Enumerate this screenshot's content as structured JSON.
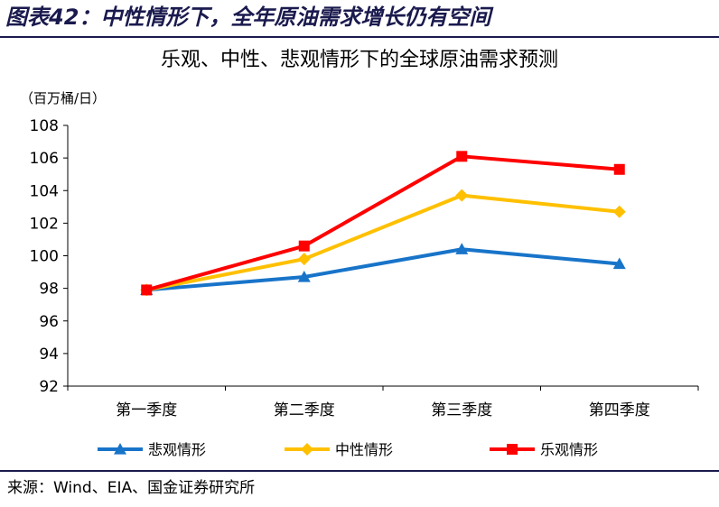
{
  "figure": {
    "title": "图表42：中性情形下，全年原油需求增长仍有空间",
    "source": "来源：Wind、EIA、国金证券研究所"
  },
  "chart_data": {
    "type": "line",
    "title": "乐观、中性、悲观情形下的全球原油需求预测",
    "unit_label": "（百万桶/日）",
    "categories": [
      "第一季度",
      "第二季度",
      "第三季度",
      "第四季度"
    ],
    "ylim": [
      92,
      108
    ],
    "yticks": [
      92,
      94,
      96,
      98,
      100,
      102,
      104,
      106,
      108
    ],
    "grid": false,
    "legend_position": "bottom",
    "series": [
      {
        "name": "悲观情形",
        "color": "#1874c9",
        "marker": "triangle",
        "values": [
          97.9,
          98.7,
          100.4,
          99.5
        ]
      },
      {
        "name": "中性情形",
        "color": "#ffc000",
        "marker": "diamond",
        "values": [
          97.9,
          99.8,
          103.7,
          102.7
        ]
      },
      {
        "name": "乐观情形",
        "color": "#ff0000",
        "marker": "square",
        "values": [
          97.9,
          100.6,
          106.1,
          105.3
        ]
      }
    ]
  }
}
